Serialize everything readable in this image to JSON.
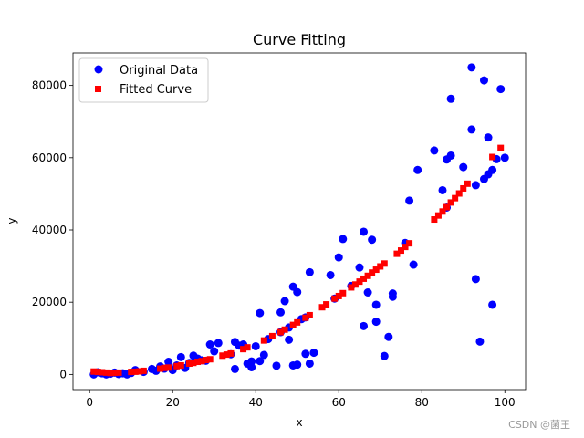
{
  "chart_data": {
    "type": "scatter",
    "title": "Curve Fitting",
    "xlabel": "x",
    "ylabel": "y",
    "xlim": [
      -4,
      105
    ],
    "ylim": [
      -4200,
      89000
    ],
    "x_ticks": [
      0,
      20,
      40,
      60,
      80,
      100
    ],
    "y_ticks": [
      0,
      20000,
      40000,
      60000,
      80000
    ],
    "x_tick_labels": [
      "0",
      "20",
      "40",
      "60",
      "80",
      "100"
    ],
    "y_tick_labels": [
      "0",
      "20000",
      "40000",
      "60000",
      "80000"
    ],
    "legend_position": "upper-left",
    "series": [
      {
        "name": "Original Data",
        "marker": "circle",
        "color": "#0000ff",
        "points": [
          [
            1,
            0
          ],
          [
            2,
            600
          ],
          [
            3,
            300
          ],
          [
            4,
            0
          ],
          [
            5,
            200
          ],
          [
            6,
            500
          ],
          [
            7,
            100
          ],
          [
            8,
            300
          ],
          [
            9,
            0
          ],
          [
            10,
            400
          ],
          [
            11,
            1200
          ],
          [
            13,
            700
          ],
          [
            15,
            1500
          ],
          [
            16,
            1000
          ],
          [
            17,
            2200
          ],
          [
            18,
            1600
          ],
          [
            19,
            3500
          ],
          [
            20,
            1200
          ],
          [
            21,
            2500
          ],
          [
            22,
            4800
          ],
          [
            23,
            1800
          ],
          [
            24,
            3200
          ],
          [
            25,
            5200
          ],
          [
            26,
            4400
          ],
          [
            27,
            3900
          ],
          [
            28,
            3800
          ],
          [
            29,
            8300
          ],
          [
            30,
            6400
          ],
          [
            31,
            8700
          ],
          [
            34,
            5600
          ],
          [
            35,
            1500
          ],
          [
            35,
            9000
          ],
          [
            36,
            8000
          ],
          [
            37,
            8300
          ],
          [
            38,
            3000
          ],
          [
            39,
            2000
          ],
          [
            39,
            3600
          ],
          [
            40,
            7800
          ],
          [
            41,
            17000
          ],
          [
            41,
            3700
          ],
          [
            42,
            5400
          ],
          [
            43,
            9800
          ],
          [
            45,
            2400
          ],
          [
            46,
            11700
          ],
          [
            46,
            17200
          ],
          [
            47,
            20300
          ],
          [
            48,
            13000
          ],
          [
            48,
            9600
          ],
          [
            49,
            24300
          ],
          [
            49,
            2500
          ],
          [
            50,
            22800
          ],
          [
            50,
            2700
          ],
          [
            51,
            15300
          ],
          [
            52,
            5700
          ],
          [
            52,
            15800
          ],
          [
            53,
            28300
          ],
          [
            53,
            3000
          ],
          [
            54,
            6000
          ],
          [
            58,
            27500
          ],
          [
            59,
            21000
          ],
          [
            60,
            32400
          ],
          [
            61,
            37500
          ],
          [
            63,
            24500
          ],
          [
            65,
            29600
          ],
          [
            66,
            39500
          ],
          [
            66,
            13400
          ],
          [
            67,
            22700
          ],
          [
            68,
            37300
          ],
          [
            69,
            14600
          ],
          [
            69,
            19300
          ],
          [
            71,
            5100
          ],
          [
            72,
            10400
          ],
          [
            73,
            21500
          ],
          [
            73,
            22400
          ],
          [
            76,
            36400
          ],
          [
            77,
            48100
          ],
          [
            78,
            30400
          ],
          [
            79,
            56600
          ],
          [
            83,
            62000
          ],
          [
            85,
            51000
          ],
          [
            86,
            59500
          ],
          [
            86,
            46200
          ],
          [
            87,
            76300
          ],
          [
            87,
            60600
          ],
          [
            90,
            57400
          ],
          [
            92,
            85000
          ],
          [
            92,
            67800
          ],
          [
            93,
            26400
          ],
          [
            93,
            52400
          ],
          [
            94,
            9100
          ],
          [
            95,
            81400
          ],
          [
            95,
            54100
          ],
          [
            96,
            65600
          ],
          [
            96,
            55400
          ],
          [
            97,
            19300
          ],
          [
            97,
            56600
          ],
          [
            98,
            59600
          ],
          [
            99,
            79000
          ],
          [
            100,
            60000
          ]
        ]
      },
      {
        "name": "Fitted Curve",
        "marker": "square",
        "color": "#ff0000",
        "points": [
          [
            1,
            800
          ],
          [
            2,
            700
          ],
          [
            3,
            600
          ],
          [
            4,
            500
          ],
          [
            5,
            400
          ],
          [
            6,
            450
          ],
          [
            7,
            500
          ],
          [
            10,
            700
          ],
          [
            11,
            750
          ],
          [
            12,
            850
          ],
          [
            13,
            1000
          ],
          [
            17,
            1600
          ],
          [
            18,
            1800
          ],
          [
            19,
            1900
          ],
          [
            21,
            2300
          ],
          [
            22,
            2500
          ],
          [
            24,
            3000
          ],
          [
            25,
            3200
          ],
          [
            26,
            3500
          ],
          [
            27,
            3700
          ],
          [
            28,
            4000
          ],
          [
            29,
            4200
          ],
          [
            32,
            5200
          ],
          [
            33,
            5500
          ],
          [
            34,
            5800
          ],
          [
            37,
            7000
          ],
          [
            38,
            7500
          ],
          [
            42,
            9400
          ],
          [
            44,
            10600
          ],
          [
            46,
            11700
          ],
          [
            47,
            12400
          ],
          [
            49,
            13700
          ],
          [
            50,
            14400
          ],
          [
            52,
            15700
          ],
          [
            53,
            16400
          ],
          [
            56,
            18600
          ],
          [
            57,
            19400
          ],
          [
            59,
            21000
          ],
          [
            60,
            21700
          ],
          [
            61,
            22500
          ],
          [
            63,
            24100
          ],
          [
            64,
            24900
          ],
          [
            65,
            25700
          ],
          [
            66,
            26500
          ],
          [
            67,
            27300
          ],
          [
            68,
            28200
          ],
          [
            69,
            29000
          ],
          [
            70,
            29900
          ],
          [
            71,
            30700
          ],
          [
            74,
            33400
          ],
          [
            75,
            34300
          ],
          [
            76,
            35300
          ],
          [
            77,
            36300
          ],
          [
            83,
            42900
          ],
          [
            84,
            44000
          ],
          [
            85,
            45100
          ],
          [
            86,
            46300
          ],
          [
            87,
            47600
          ],
          [
            88,
            48800
          ],
          [
            89,
            50100
          ],
          [
            90,
            51500
          ],
          [
            91,
            52800
          ],
          [
            97,
            60200
          ],
          [
            99,
            62700
          ]
        ]
      }
    ]
  },
  "watermark": "CSDN @菌王"
}
